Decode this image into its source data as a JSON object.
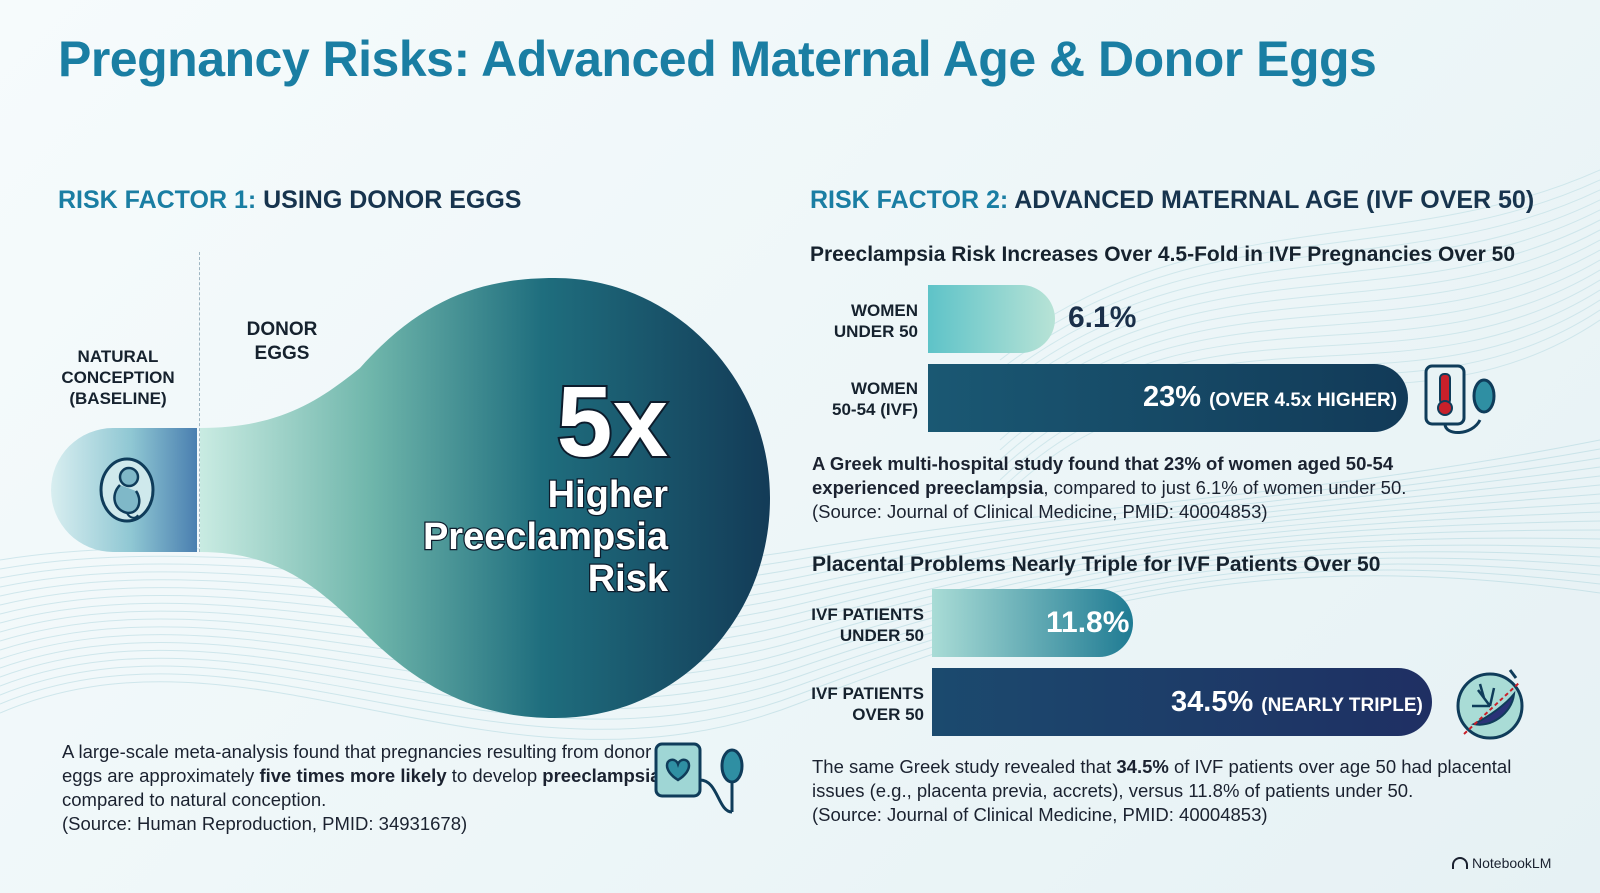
{
  "title": "Pregnancy Risks: Advanced Maternal Age & Donor Eggs",
  "left": {
    "heading_prefix": "RISK FACTOR 1:",
    "heading_rest": "USING DONOR EGGS",
    "baseline_label": "NATURAL\nCONCEPTION\n(BASELINE)",
    "donor_label": "DONOR\nEGGS",
    "big_number": "5x",
    "big_text": "Higher\nPreeclampsia\nRisk",
    "para_1": "A large-scale meta-analysis found that pregnancies resulting from donor eggs are approximately ",
    "para_bold_1": "five times more likely",
    "para_2": " to develop ",
    "para_bold_2": "preeclampsia",
    "para_3": " compared to natural conception.",
    "source": "(Source: Human Reproduction, PMID: 34931678)"
  },
  "right": {
    "heading_prefix": "RISK FACTOR 2:",
    "heading_rest": "ADVANCED MATERNAL AGE (IVF OVER 50)",
    "chart1_title": "Preeclampsia Risk Increases Over 4.5-Fold in IVF Pregnancies Over 50",
    "chart1_para_bold": "A Greek multi-hospital study found that 23% of women aged 50-54 experienced preeclampsia",
    "chart1_para_rest": ", compared to just 6.1% of women under 50.",
    "chart1_source": "(Source: Journal of Clinical Medicine, PMID: 40004853)",
    "chart2_title": "Placental Problems Nearly Triple for IVF Patients Over 50",
    "chart2_para_1": "The same Greek study revealed that ",
    "chart2_para_bold": "34.5%",
    "chart2_para_2": " of IVF patients over age 50 had placental issues (e.g., placenta previa, accrets), versus 11.8% of patients under 50.",
    "chart2_source": "(Source: Journal of Clinical Medicine, PMID: 40004853)"
  },
  "chart_data": [
    {
      "type": "bar",
      "title": "RISK FACTOR 1: USING DONOR EGGS",
      "categories": [
        "NATURAL CONCEPTION (BASELINE)",
        "DONOR EGGS"
      ],
      "values": [
        1,
        5
      ],
      "value_labels": [
        "",
        "5x"
      ]
    },
    {
      "type": "bar",
      "orientation": "horizontal",
      "title": "Preeclampsia Risk Increases Over 4.5-Fold in IVF Pregnancies Over 50",
      "categories": [
        "WOMEN\nUNDER 50",
        "WOMEN\n50-54 (IVF)"
      ],
      "values": [
        6.1,
        23
      ],
      "value_labels": [
        "6.1%",
        "23%"
      ],
      "annotations": [
        "",
        "(OVER 4.5x HIGHER)"
      ],
      "colors": [
        "#7fd0cf",
        "#123a58"
      ]
    },
    {
      "type": "bar",
      "orientation": "horizontal",
      "title": "Placental Problems Nearly Triple for IVF Patients Over 50",
      "categories": [
        "IVF PATIENTS\nUNDER 50",
        "IVF PATIENTS\nOVER 50"
      ],
      "values": [
        11.8,
        34.5
      ],
      "value_labels": [
        "11.8%",
        "34.5%"
      ],
      "annotations": [
        "",
        "(NEARLY TRIPLE)"
      ],
      "colors": [
        "#2f8fa3",
        "#1f2f63"
      ]
    }
  ],
  "footer": {
    "brand": "NotebookLM"
  },
  "icons": {
    "fetus": "fetus-icon",
    "bp_cuff": "blood-pressure-heart-icon",
    "bp_monitor": "blood-pressure-thermometer-icon",
    "placenta": "placenta-icon",
    "brand": "notebooklm-logo-icon"
  }
}
